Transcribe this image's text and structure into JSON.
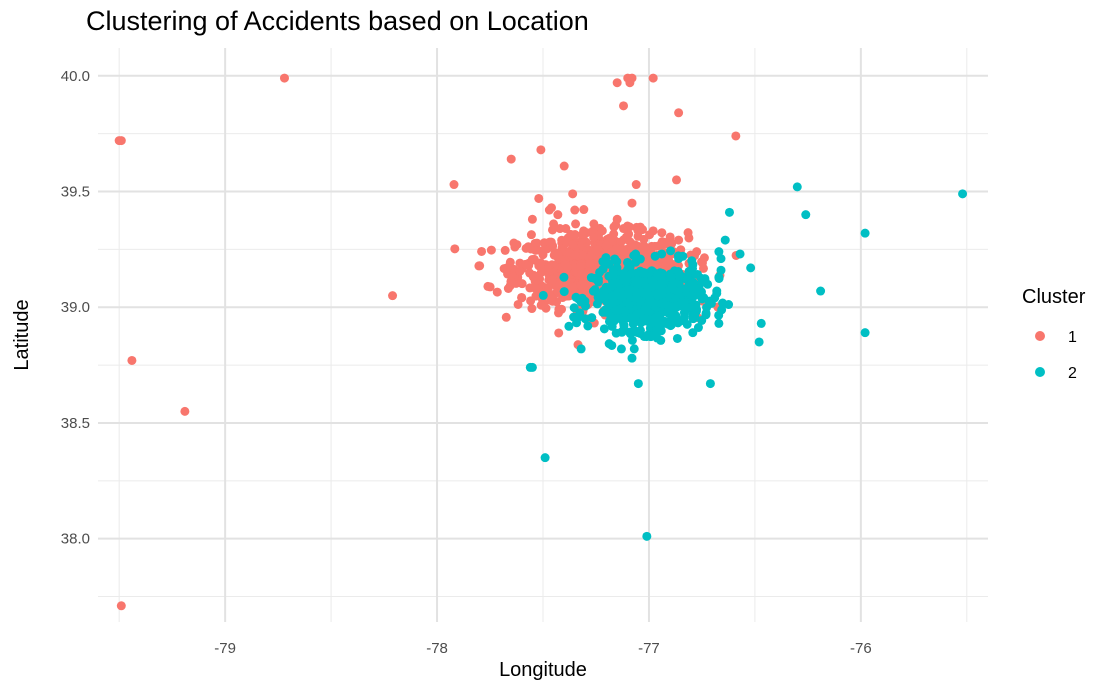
{
  "chart_data": {
    "type": "scatter",
    "title": "Clustering of Accidents based on Location",
    "xlabel": "Longitude",
    "ylabel": "Latitude",
    "xlim": [
      -79.6,
      -75.4
    ],
    "ylim": [
      37.64,
      40.12
    ],
    "x_ticks": [
      -79,
      -78,
      -77,
      -76
    ],
    "x_tick_labels": [
      "-79",
      "-78",
      "-77",
      "-76"
    ],
    "x_minor": [
      -79.5,
      -78.5,
      -77.5,
      -76.5,
      -75.5
    ],
    "y_ticks": [
      38.0,
      38.5,
      39.0,
      39.5,
      40.0
    ],
    "y_tick_labels": [
      "38.0",
      "38.5",
      "39.0",
      "39.5",
      "40.0"
    ],
    "y_minor": [
      37.75,
      38.25,
      38.75,
      39.25,
      39.75
    ],
    "grid": true,
    "legend": {
      "title": "Cluster",
      "position": "right"
    },
    "series": [
      {
        "name": "1",
        "color": "#F8766D",
        "points": [
          [
            -79.49,
            39.72
          ],
          [
            -79.5,
            39.72
          ],
          [
            -78.72,
            39.99
          ],
          [
            -79.44,
            38.77
          ],
          [
            -79.19,
            38.55
          ],
          [
            -79.49,
            37.71
          ],
          [
            -78.21,
            39.05
          ],
          [
            -77.92,
            39.53
          ],
          [
            -77.76,
            39.09
          ],
          [
            -77.65,
            39.64
          ],
          [
            -77.51,
            39.68
          ],
          [
            -77.55,
            39.38
          ],
          [
            -77.52,
            39.47
          ],
          [
            -77.4,
            39.61
          ],
          [
            -77.36,
            39.49
          ],
          [
            -77.06,
            39.53
          ],
          [
            -77.08,
            39.45
          ],
          [
            -77.12,
            39.87
          ],
          [
            -77.15,
            39.97
          ],
          [
            -77.1,
            39.99
          ],
          [
            -77.08,
            39.99
          ],
          [
            -77.09,
            39.97
          ],
          [
            -76.98,
            39.99
          ],
          [
            -76.86,
            39.84
          ],
          [
            -76.59,
            39.74
          ],
          [
            -76.87,
            39.55
          ],
          [
            -76.98,
            39.33
          ],
          [
            -76.86,
            39.29
          ],
          [
            -77.33,
            38.99
          ],
          [
            -77.31,
            38.99
          ],
          [
            -77.33,
            38.97
          ],
          [
            -77.43,
            39.4
          ],
          [
            -77.46,
            39.43
          ],
          [
            -77.42,
            39.34
          ],
          [
            -77.36,
            39.27
          ],
          [
            -77.26,
            39.36
          ],
          [
            -77.22,
            39.33
          ],
          [
            -77.15,
            39.38
          ],
          [
            -77.12,
            39.34
          ],
          [
            -77.35,
            39.42
          ],
          [
            -77.47,
            39.42
          ],
          [
            -77.45,
            39.36
          ]
        ],
        "cluster_blob": {
          "center": [
            -77.22,
            39.16
          ],
          "spread_x": 0.2,
          "spread_y": 0.08,
          "count": 900
        }
      },
      {
        "name": "2",
        "color": "#00BFC4",
        "points": [
          [
            -76.3,
            39.52
          ],
          [
            -75.52,
            39.49
          ],
          [
            -76.26,
            39.4
          ],
          [
            -76.62,
            39.41
          ],
          [
            -76.64,
            39.29
          ],
          [
            -76.57,
            39.23
          ],
          [
            -76.52,
            39.17
          ],
          [
            -76.67,
            39.24
          ],
          [
            -76.66,
            39.21
          ],
          [
            -76.66,
            39.16
          ],
          [
            -76.67,
            39.13
          ],
          [
            -76.68,
            39.07
          ],
          [
            -76.68,
            39.06
          ],
          [
            -76.69,
            39.04
          ],
          [
            -76.19,
            39.07
          ],
          [
            -75.98,
            39.32
          ],
          [
            -75.98,
            38.89
          ],
          [
            -76.47,
            38.93
          ],
          [
            -76.48,
            38.85
          ],
          [
            -76.67,
            38.93
          ],
          [
            -76.71,
            38.67
          ],
          [
            -77.05,
            38.67
          ],
          [
            -77.08,
            38.78
          ],
          [
            -77.13,
            38.82
          ],
          [
            -77.32,
            38.82
          ],
          [
            -77.56,
            38.74
          ],
          [
            -77.55,
            38.74
          ],
          [
            -77.49,
            38.35
          ],
          [
            -77.01,
            38.01
          ],
          [
            -76.86,
            39.21
          ],
          [
            -76.94,
            39.23
          ],
          [
            -76.8,
            39.16
          ],
          [
            -76.8,
            39.0
          ],
          [
            -76.88,
            39.0
          ],
          [
            -76.93,
            38.93
          ],
          [
            -77.04,
            38.9
          ],
          [
            -77.07,
            38.9
          ],
          [
            -77.34,
            38.95
          ],
          [
            -77.18,
            38.96
          ],
          [
            -76.84,
            39.22
          ]
        ],
        "cluster_blob": {
          "center": [
            -77.01,
            39.04
          ],
          "spread_x": 0.13,
          "spread_y": 0.07,
          "count": 600
        }
      }
    ]
  }
}
